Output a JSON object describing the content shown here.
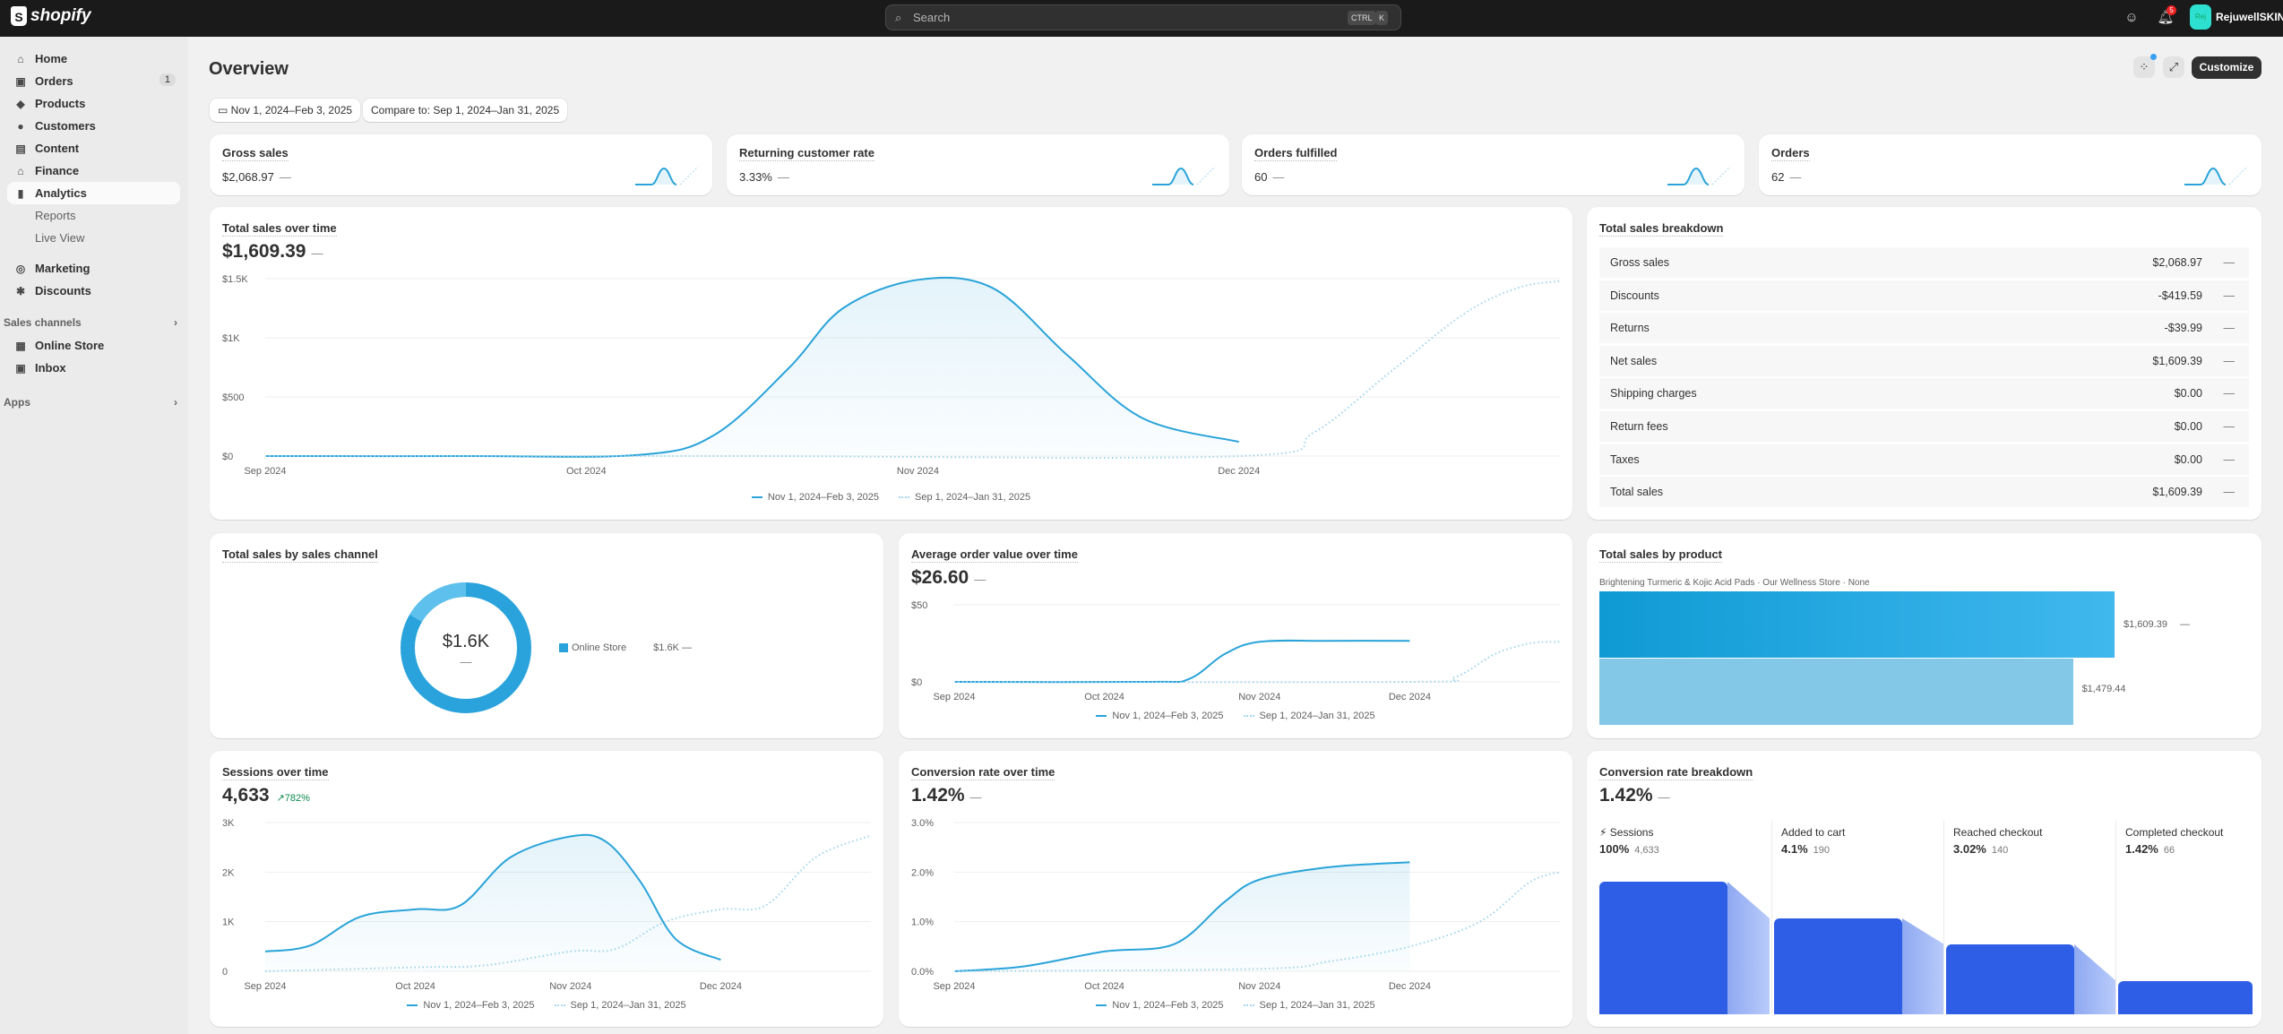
{
  "topbar": {
    "brand": "shopify",
    "search_placeholder": "Search",
    "shortcut": [
      "CTRL",
      "K"
    ],
    "notifications": "5",
    "avatar_initials": "Rej",
    "store_name": "RejuwellSKIN"
  },
  "sidebar": {
    "items": [
      {
        "label": "Home",
        "icon": "home-icon",
        "glyph": "⌂"
      },
      {
        "label": "Orders",
        "icon": "inbox-icon",
        "glyph": "▣",
        "count": "1"
      },
      {
        "label": "Products",
        "icon": "tag-icon",
        "glyph": "◆"
      },
      {
        "label": "Customers",
        "icon": "person-icon",
        "glyph": "●"
      },
      {
        "label": "Content",
        "icon": "image-icon",
        "glyph": "▤"
      },
      {
        "label": "Finance",
        "icon": "bank-icon",
        "glyph": "⌂"
      },
      {
        "label": "Analytics",
        "icon": "bar-chart-icon",
        "glyph": "▮"
      }
    ],
    "analytics_sub": [
      "Reports",
      "Live View"
    ],
    "items2": [
      {
        "label": "Marketing",
        "icon": "target-icon",
        "glyph": "◎"
      },
      {
        "label": "Discounts",
        "icon": "discount-icon",
        "glyph": "✱"
      }
    ],
    "sales_channels_label": "Sales channels",
    "channels": [
      {
        "label": "Online Store",
        "icon": "store-icon",
        "glyph": "▦"
      },
      {
        "label": "Inbox",
        "icon": "chat-icon",
        "glyph": "▣"
      }
    ],
    "apps_label": "Apps"
  },
  "header": {
    "title": "Overview",
    "date_range": "Nov 1, 2024–Feb 3, 2025",
    "compare": "Compare to: Sep 1, 2024–Jan 31, 2025",
    "customize": "Customize"
  },
  "metrics": [
    {
      "label": "Gross sales",
      "value": "$2,068.97",
      "change": "—"
    },
    {
      "label": "Returning customer rate",
      "value": "3.33%",
      "change": "—"
    },
    {
      "label": "Orders fulfilled",
      "value": "60",
      "change": "—"
    },
    {
      "label": "Orders",
      "value": "62",
      "change": "—"
    }
  ],
  "legend": {
    "current": "Nov 1, 2024–Feb 3, 2025",
    "previous": "Sep 1, 2024–Jan 31, 2025"
  },
  "total_sales": {
    "title": "Total sales over time",
    "value": "$1,609.39",
    "change": "—"
  },
  "aov": {
    "title": "Average order value over time",
    "value": "$26.60",
    "change": "—"
  },
  "sessions": {
    "title": "Sessions over time",
    "value": "4,633",
    "change": "782%",
    "change_color": "#0c8a4f"
  },
  "conversion": {
    "title": "Conversion rate over time",
    "value": "1.42%",
    "change": "—"
  },
  "breakdown": {
    "title": "Total sales breakdown",
    "rows": [
      {
        "label": "Gross sales",
        "value": "$2,068.97",
        "change": "—"
      },
      {
        "label": "Discounts",
        "value": "-$419.59",
        "change": "—"
      },
      {
        "label": "Returns",
        "value": "-$39.99",
        "change": "—"
      },
      {
        "label": "Net sales",
        "value": "$1,609.39",
        "change": "—"
      },
      {
        "label": "Shipping charges",
        "value": "$0.00",
        "change": "—"
      },
      {
        "label": "Return fees",
        "value": "$0.00",
        "change": "—"
      },
      {
        "label": "Taxes",
        "value": "$0.00",
        "change": "—"
      },
      {
        "label": "Total sales",
        "value": "$1,609.39",
        "change": "—"
      }
    ]
  },
  "channel": {
    "title": "Total sales by sales channel",
    "center_value": "$1.6K",
    "center_change": "—",
    "legend_label": "Online Store",
    "legend_value": "$1.6K",
    "legend_change": "—",
    "color": "#2aa3dc"
  },
  "product": {
    "title": "Total sales by product",
    "product_label": "Brightening Turmeric & Kojic Acid Pads · Our Wellness Store · None",
    "current": 1609.39,
    "current_label": "$1,609.39",
    "current_change": "—",
    "previous": 1479.44,
    "previous_label": "$1,479.44"
  },
  "funnel": {
    "title": "Conversion rate breakdown",
    "value": "1.42%",
    "change": "—",
    "steps": [
      {
        "label": "Sessions",
        "pct": "100%",
        "count": "4,633"
      },
      {
        "label": "Added to cart",
        "pct": "4.1%",
        "count": "190"
      },
      {
        "label": "Reached checkout",
        "pct": "3.02%",
        "count": "140"
      },
      {
        "label": "Completed checkout",
        "pct": "1.42%",
        "count": "66"
      }
    ],
    "color": "#2f5ee6"
  },
  "chart_data": [
    {
      "id": "total-sales",
      "type": "area",
      "xlim": [
        "2024-09-01",
        "2024-12-31"
      ],
      "xticks": [
        {
          "d": "2024-09-01",
          "label": "Sep 2024"
        },
        {
          "d": "2024-10-01",
          "label": "Oct 2024"
        },
        {
          "d": "2024-11-01",
          "label": "Nov 2024"
        },
        {
          "d": "2024-12-01",
          "label": "Dec 2024"
        }
      ],
      "ylim": [
        0,
        1500
      ],
      "yticks": [
        {
          "v": 0,
          "label": "$0"
        },
        {
          "v": 500,
          "label": "$500"
        },
        {
          "v": 1000,
          "label": "$1K"
        },
        {
          "v": 1500,
          "label": "$1.5K"
        }
      ],
      "series": [
        {
          "name": "Nov 1, 2024–Feb 3, 2025",
          "style": "solid",
          "points": [
            [
              "2024-09-01",
              0
            ],
            [
              "2024-09-20",
              0
            ],
            [
              "2024-10-06",
              10
            ],
            [
              "2024-10-13",
              180
            ],
            [
              "2024-10-20",
              750
            ],
            [
              "2024-10-25",
              1250
            ],
            [
              "2024-11-01",
              1490
            ],
            [
              "2024-11-08",
              1420
            ],
            [
              "2024-11-15",
              850
            ],
            [
              "2024-11-22",
              320
            ],
            [
              "2024-12-01",
              120
            ]
          ]
        },
        {
          "name": "Sep 1, 2024–Jan 31, 2025",
          "style": "dotted",
          "points": [
            [
              "2024-09-01",
              0
            ],
            [
              "2024-10-15",
              0
            ],
            [
              "2024-12-01",
              0
            ],
            [
              "2024-12-08",
              200
            ],
            [
              "2024-12-15",
              700
            ],
            [
              "2024-12-22",
              1200
            ],
            [
              "2024-12-27",
              1420
            ],
            [
              "2024-12-31",
              1480
            ]
          ]
        }
      ]
    },
    {
      "id": "aov",
      "type": "line",
      "xlim": [
        "2024-09-01",
        "2024-12-31"
      ],
      "xticks": [
        {
          "d": "2024-09-01",
          "label": "Sep 2024"
        },
        {
          "d": "2024-10-01",
          "label": "Oct 2024"
        },
        {
          "d": "2024-11-01",
          "label": "Nov 2024"
        },
        {
          "d": "2024-12-01",
          "label": "Dec 2024"
        }
      ],
      "ylim": [
        0,
        50
      ],
      "yticks": [
        {
          "v": 0,
          "label": "$0"
        },
        {
          "v": 50,
          "label": "$50"
        }
      ],
      "series": [
        {
          "name": "Nov 1, 2024–Feb 3, 2025",
          "style": "solid",
          "points": [
            [
              "2024-09-01",
              0
            ],
            [
              "2024-10-10",
              0
            ],
            [
              "2024-10-18",
              2
            ],
            [
              "2024-10-25",
              18
            ],
            [
              "2024-11-01",
              26
            ],
            [
              "2024-11-15",
              26.6
            ],
            [
              "2024-12-01",
              26.6
            ]
          ]
        },
        {
          "name": "Sep 1, 2024–Jan 31, 2025",
          "style": "dotted",
          "points": [
            [
              "2024-09-01",
              0
            ],
            [
              "2024-12-01",
              0
            ],
            [
              "2024-12-10",
              3
            ],
            [
              "2024-12-18",
              18
            ],
            [
              "2024-12-25",
              25
            ],
            [
              "2024-12-31",
              26
            ]
          ]
        }
      ]
    },
    {
      "id": "sessions",
      "type": "area",
      "xlim": [
        "2024-09-01",
        "2024-12-31"
      ],
      "xticks": [
        {
          "d": "2024-09-01",
          "label": "Sep 2024"
        },
        {
          "d": "2024-10-01",
          "label": "Oct 2024"
        },
        {
          "d": "2024-11-01",
          "label": "Nov 2024"
        },
        {
          "d": "2024-12-01",
          "label": "Dec 2024"
        }
      ],
      "ylim": [
        0,
        3000
      ],
      "yticks": [
        {
          "v": 0,
          "label": "0"
        },
        {
          "v": 1000,
          "label": "1K"
        },
        {
          "v": 2000,
          "label": "2K"
        },
        {
          "v": 3000,
          "label": "3K"
        }
      ],
      "series": [
        {
          "name": "Nov 1, 2024–Feb 3, 2025",
          "style": "solid",
          "points": [
            [
              "2024-09-01",
              400
            ],
            [
              "2024-09-10",
              520
            ],
            [
              "2024-09-20",
              1100
            ],
            [
              "2024-10-01",
              1250
            ],
            [
              "2024-10-10",
              1330
            ],
            [
              "2024-10-20",
              2300
            ],
            [
              "2024-11-01",
              2720
            ],
            [
              "2024-11-08",
              2620
            ],
            [
              "2024-11-15",
              1800
            ],
            [
              "2024-11-22",
              650
            ],
            [
              "2024-12-01",
              230
            ]
          ]
        },
        {
          "name": "Sep 1, 2024–Jan 31, 2025",
          "style": "dotted",
          "points": [
            [
              "2024-09-01",
              0
            ],
            [
              "2024-10-01",
              80
            ],
            [
              "2024-10-15",
              120
            ],
            [
              "2024-11-01",
              400
            ],
            [
              "2024-11-10",
              450
            ],
            [
              "2024-11-20",
              1000
            ],
            [
              "2024-12-01",
              1250
            ],
            [
              "2024-12-10",
              1330
            ],
            [
              "2024-12-20",
              2300
            ],
            [
              "2024-12-31",
              2740
            ]
          ]
        }
      ]
    },
    {
      "id": "conversion",
      "type": "area",
      "xlim": [
        "2024-09-01",
        "2024-12-31"
      ],
      "xticks": [
        {
          "d": "2024-09-01",
          "label": "Sep 2024"
        },
        {
          "d": "2024-10-01",
          "label": "Oct 2024"
        },
        {
          "d": "2024-11-01",
          "label": "Nov 2024"
        },
        {
          "d": "2024-12-01",
          "label": "Dec 2024"
        }
      ],
      "ylim": [
        0,
        3
      ],
      "yticks": [
        {
          "v": 0,
          "label": "0.0%"
        },
        {
          "v": 1,
          "label": "1.0%"
        },
        {
          "v": 2,
          "label": "2.0%"
        },
        {
          "v": 3,
          "label": "3.0%"
        }
      ],
      "series": [
        {
          "name": "Nov 1, 2024–Feb 3, 2025",
          "style": "solid",
          "points": [
            [
              "2024-09-01",
              0
            ],
            [
              "2024-09-15",
              0.1
            ],
            [
              "2024-10-01",
              0.4
            ],
            [
              "2024-10-15",
              0.55
            ],
            [
              "2024-10-25",
              1.4
            ],
            [
              "2024-11-01",
              1.85
            ],
            [
              "2024-11-15",
              2.1
            ],
            [
              "2024-12-01",
              2.2
            ]
          ]
        },
        {
          "name": "Sep 1, 2024–Jan 31, 2025",
          "style": "dotted",
          "points": [
            [
              "2024-09-01",
              0
            ],
            [
              "2024-11-01",
              0.05
            ],
            [
              "2024-11-15",
              0.2
            ],
            [
              "2024-12-01",
              0.5
            ],
            [
              "2024-12-15",
              1.0
            ],
            [
              "2024-12-25",
              1.8
            ],
            [
              "2024-12-31",
              2.0
            ]
          ]
        }
      ]
    }
  ]
}
